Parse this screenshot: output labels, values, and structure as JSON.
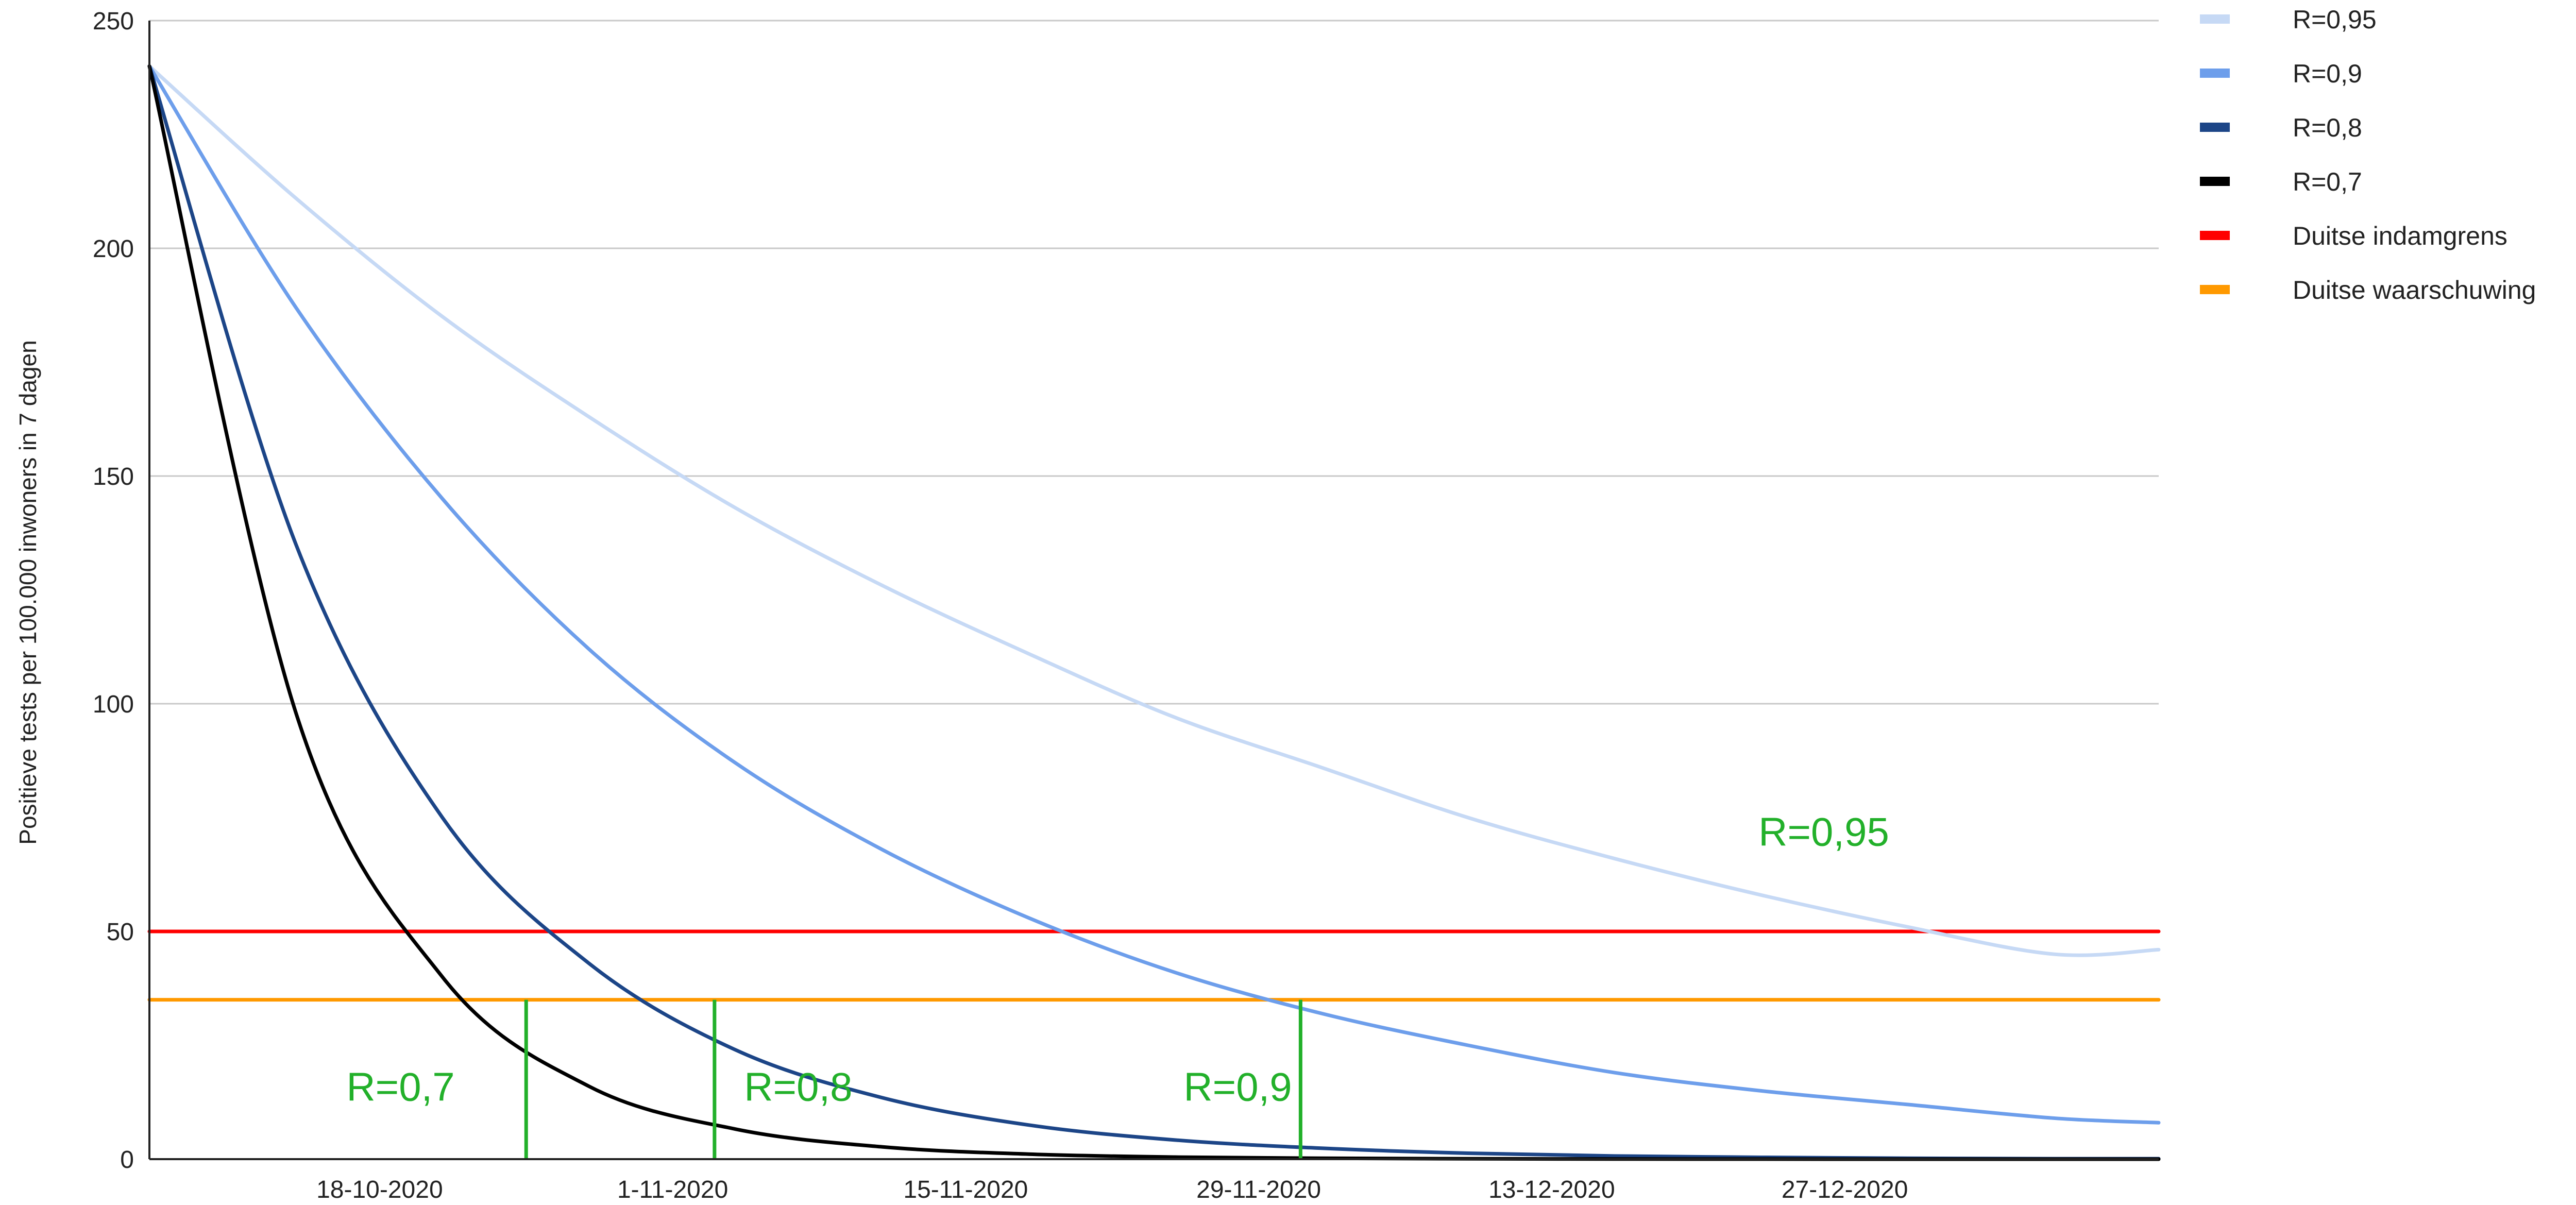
{
  "chart_data": {
    "type": "line",
    "title": "",
    "xlabel": "",
    "ylabel": "Positieve tests per 100.000 inwoners in 7 dagen",
    "x_unit": "date",
    "x_range": [
      "2020-10-07",
      "2021-01-11"
    ],
    "ylim": [
      0,
      250
    ],
    "y_ticks": [
      0,
      50,
      100,
      150,
      200,
      250
    ],
    "x_tick_labels": [
      "18-10-2020",
      "1-11-2020",
      "15-11-2020",
      "29-11-2020",
      "13-12-2020",
      "27-12-2020"
    ],
    "grid": true,
    "legend_position": "right",
    "series": [
      {
        "name": "R=0,95",
        "color": "#c6d9f5",
        "x": [
          "2020-10-07",
          "2020-10-14",
          "2020-10-21",
          "2020-10-28",
          "2020-11-04",
          "2020-11-11",
          "2020-11-18",
          "2020-11-25",
          "2020-12-02",
          "2020-12-09",
          "2020-12-16",
          "2020-12-23",
          "2020-12-30",
          "2021-01-06",
          "2021-01-11"
        ],
        "values": [
          240,
          211,
          185,
          163,
          143,
          126,
          111,
          97,
          86,
          75,
          66,
          58,
          51,
          45,
          46
        ]
      },
      {
        "name": "R=0,9",
        "color": "#6d9eeb",
        "x": [
          "2020-10-07",
          "2020-10-14",
          "2020-10-21",
          "2020-10-28",
          "2020-11-04",
          "2020-11-11",
          "2020-11-18",
          "2020-11-25",
          "2020-12-02",
          "2020-12-09",
          "2020-12-16",
          "2020-12-23",
          "2020-12-30",
          "2021-01-06",
          "2021-01-11"
        ],
        "values": [
          240,
          187,
          145,
          112,
          87,
          68,
          53,
          41,
          32,
          25,
          19,
          15,
          12,
          9,
          8
        ]
      },
      {
        "name": "R=0,8",
        "color": "#1c4587",
        "x": [
          "2020-10-07",
          "2020-10-14",
          "2020-10-21",
          "2020-10-28",
          "2020-11-04",
          "2020-11-11",
          "2020-11-18",
          "2020-11-25",
          "2020-12-02",
          "2020-12-09",
          "2020-12-16",
          "2020-12-23",
          "2020-12-30",
          "2021-01-06",
          "2021-01-11"
        ],
        "values": [
          240,
          135,
          75,
          43,
          24,
          13.5,
          7.5,
          4.2,
          2.4,
          1.3,
          0.7,
          0.4,
          0.2,
          0.1,
          0.1
        ]
      },
      {
        "name": "R=0,7",
        "color": "#000000",
        "x": [
          "2020-10-07",
          "2020-10-14",
          "2020-10-21",
          "2020-10-28",
          "2020-11-04",
          "2020-11-11",
          "2020-11-18",
          "2020-11-25",
          "2020-12-02",
          "2020-12-09",
          "2020-12-16",
          "2020-12-23",
          "2020-12-30",
          "2021-01-06",
          "2021-01-11"
        ],
        "values": [
          240,
          98,
          40,
          16,
          6.6,
          2.7,
          1.1,
          0.45,
          0.2,
          0.08,
          0.03,
          0.01,
          0,
          0,
          0
        ]
      },
      {
        "name": "Duitse indamgrens",
        "color": "#ff0000",
        "x": [
          "2020-10-07",
          "2021-01-11"
        ],
        "values": [
          50,
          50
        ]
      },
      {
        "name": "Duitse waarschuwing",
        "color": "#ff9900",
        "x": [
          "2020-10-07",
          "2021-01-11"
        ],
        "values": [
          35,
          35
        ]
      }
    ],
    "annotations": [
      {
        "text": "R=0,95",
        "x": "2020-12-26",
        "y": 72
      },
      {
        "text": "R=0,7",
        "x": "2020-10-19",
        "x_line": "2020-10-25",
        "y": 16,
        "line_from": 0,
        "line_to": 35
      },
      {
        "text": "R=0,8",
        "x": "2020-11-07",
        "x_line": "2020-11-03",
        "y": 16,
        "line_from": 0,
        "line_to": 35
      },
      {
        "text": "R=0,9",
        "x": "2020-11-28",
        "x_line": "2020-12-01",
        "y": 16,
        "line_from": 0,
        "line_to": 35
      }
    ],
    "annotation_color": "#22b02a"
  }
}
